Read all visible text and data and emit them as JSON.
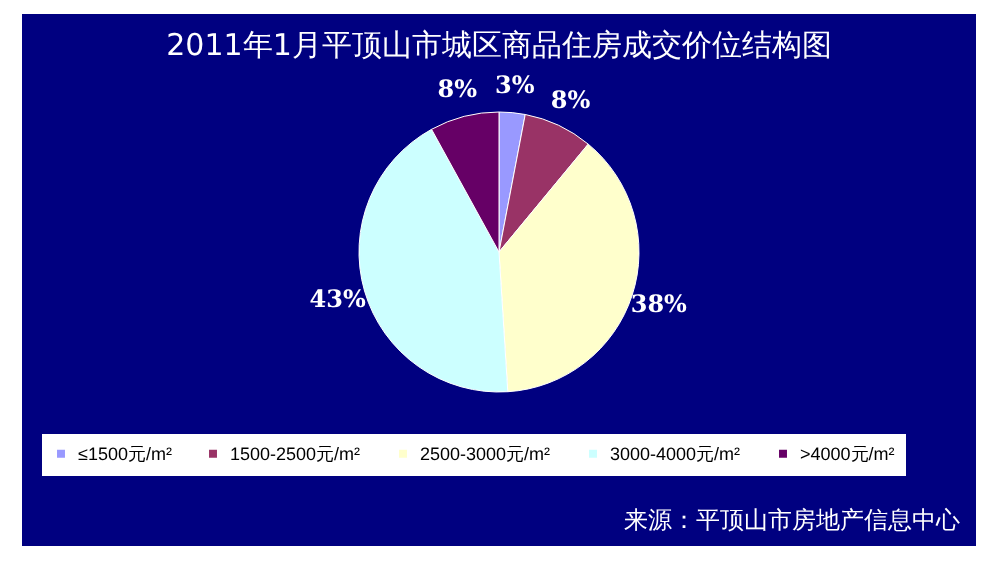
{
  "chart_data": {
    "type": "pie",
    "title": "2011年1月平顶山市城区商品住房成交价位结构图",
    "categories": [
      "≤1500元/m²",
      "1500-2500元/m²",
      "2500-3000元/m²",
      "3000-4000元/m²",
      ">4000元/m²"
    ],
    "values": [
      3,
      8,
      38,
      43,
      8
    ],
    "colors": [
      "#9999ff",
      "#993366",
      "#ffffcc",
      "#ccffff",
      "#660066"
    ],
    "value_labels": [
      "3%",
      "8%",
      "38%",
      "43%",
      "8%"
    ],
    "legend": "bottom",
    "annotations": [
      "来源：平顶山市房地产信息中心"
    ]
  }
}
